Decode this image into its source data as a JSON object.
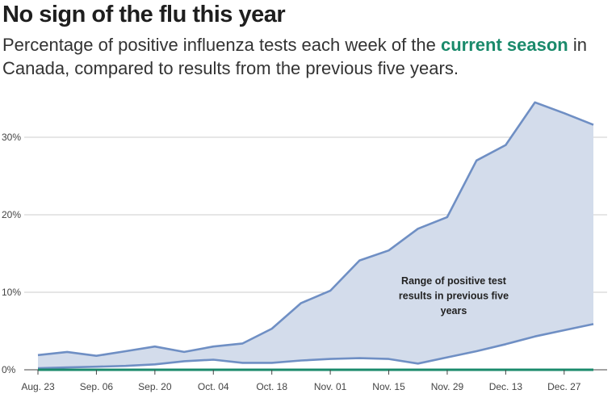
{
  "title": "No sign of the flu this year",
  "subtitle": {
    "before": "Percentage of positive influenza tests each week of the ",
    "highlight": "current season",
    "after": " in Canada, compared to results from the previous five years."
  },
  "colors": {
    "range_fill": "#d3dceb",
    "range_line": "#6f8fc4",
    "current": "#1a8a6b",
    "grid": "#cccccc"
  },
  "chart_data": {
    "type": "area",
    "ylim": [
      0,
      35
    ],
    "y_ticks": [
      0,
      10,
      20,
      30
    ],
    "y_tick_labels": [
      "0%",
      "10%",
      "20%",
      "30%"
    ],
    "x_tick_labels": [
      "Aug. 23",
      "Sep. 06",
      "Sep. 20",
      "Oct. 04",
      "Oct. 18",
      "Nov. 01",
      "Nov. 15",
      "Nov. 29",
      "Dec. 13",
      "Dec. 27"
    ],
    "x_tick_weeks": [
      0,
      2,
      4,
      6,
      8,
      10,
      12,
      14,
      16,
      18
    ],
    "grid": true,
    "series": [
      {
        "role": "range_max",
        "values": [
          1.9,
          2.3,
          1.8,
          2.4,
          3.0,
          2.3,
          3.0,
          3.4,
          5.3,
          8.6,
          10.2,
          14.1,
          15.4,
          18.2,
          19.7,
          27.0,
          29.0,
          34.5,
          33.1,
          31.6
        ]
      },
      {
        "role": "range_min",
        "values": [
          0.2,
          0.3,
          0.4,
          0.5,
          0.7,
          1.1,
          1.3,
          0.9,
          0.9,
          1.2,
          1.4,
          1.5,
          1.4,
          0.8,
          1.6,
          2.4,
          3.3,
          4.3,
          5.1,
          5.9
        ]
      },
      {
        "role": "current",
        "values": [
          0.0,
          0.0,
          0.0,
          0.0,
          0.0,
          0.0,
          0.0,
          0.0,
          0.0,
          0.0,
          0.0,
          0.0,
          0.0,
          0.0,
          0.0,
          0.0,
          0.0,
          0.0,
          0.0,
          0.0
        ]
      }
    ],
    "annotation": [
      "Range of positive test",
      "results in previous five",
      "years"
    ]
  }
}
